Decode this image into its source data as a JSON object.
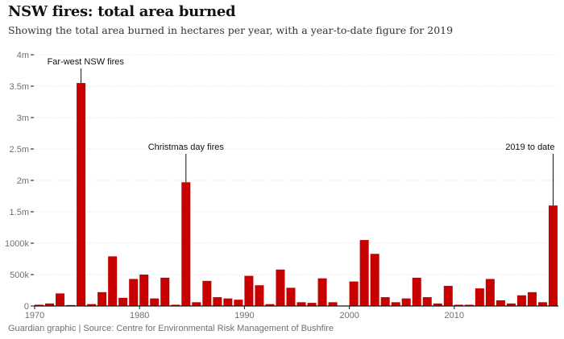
{
  "header": {
    "title": "NSW fires: total area burned",
    "subtitle": "Showing the total area burned in hectares per year, with a year-to-date figure for 2019"
  },
  "footer": {
    "source": "Guardian graphic | Source: Centre for Environmental Risk Management of Bushfire"
  },
  "colors": {
    "bar": "#c70000",
    "axis": "#121212",
    "grid": "#dcdcdc",
    "tick_text": "#707070"
  },
  "chart_data": {
    "type": "bar",
    "title": "NSW fires: total area burned",
    "xlabel": "",
    "ylabel": "",
    "ylim": [
      0,
      4000000
    ],
    "y_ticks": [
      {
        "value": 0,
        "label": "0"
      },
      {
        "value": 500000,
        "label": "500k"
      },
      {
        "value": 1000000,
        "label": "1000k"
      },
      {
        "value": 1500000,
        "label": "1.5m"
      },
      {
        "value": 2000000,
        "label": "2m"
      },
      {
        "value": 2500000,
        "label": "2.5m"
      },
      {
        "value": 3000000,
        "label": "3m"
      },
      {
        "value": 3500000,
        "label": "3.5m"
      },
      {
        "value": 4000000,
        "label": "4m"
      }
    ],
    "x_ticks": [
      {
        "value": 1970,
        "label": "1970"
      },
      {
        "value": 1980,
        "label": "1980"
      },
      {
        "value": 1990,
        "label": "1990"
      },
      {
        "value": 2000,
        "label": "2000"
      },
      {
        "value": 2010,
        "label": "2010"
      }
    ],
    "categories": [
      1970,
      1971,
      1972,
      1973,
      1974,
      1975,
      1976,
      1977,
      1978,
      1979,
      1980,
      1981,
      1982,
      1983,
      1984,
      1985,
      1986,
      1987,
      1988,
      1989,
      1990,
      1991,
      1992,
      1993,
      1994,
      1995,
      1996,
      1997,
      1998,
      1999,
      2000,
      2001,
      2002,
      2003,
      2004,
      2005,
      2006,
      2007,
      2008,
      2009,
      2010,
      2011,
      2012,
      2013,
      2014,
      2015,
      2016,
      2017,
      2018,
      2019
    ],
    "values": [
      20000,
      40000,
      200000,
      15000,
      3550000,
      30000,
      220000,
      790000,
      130000,
      430000,
      500000,
      120000,
      450000,
      20000,
      1970000,
      60000,
      400000,
      140000,
      120000,
      100000,
      480000,
      330000,
      30000,
      580000,
      290000,
      60000,
      50000,
      440000,
      60000,
      0,
      390000,
      1050000,
      830000,
      140000,
      60000,
      120000,
      450000,
      140000,
      40000,
      320000,
      20000,
      20000,
      280000,
      430000,
      90000,
      40000,
      170000,
      220000,
      60000,
      1600000
    ],
    "annotations": [
      {
        "label": "Far-west NSW fires",
        "year": 1974,
        "anchor": "start"
      },
      {
        "label": "Christmas day fires",
        "year": 1984,
        "anchor": "middle"
      },
      {
        "label": "2019 to date",
        "year": 2019,
        "anchor": "end"
      }
    ]
  }
}
